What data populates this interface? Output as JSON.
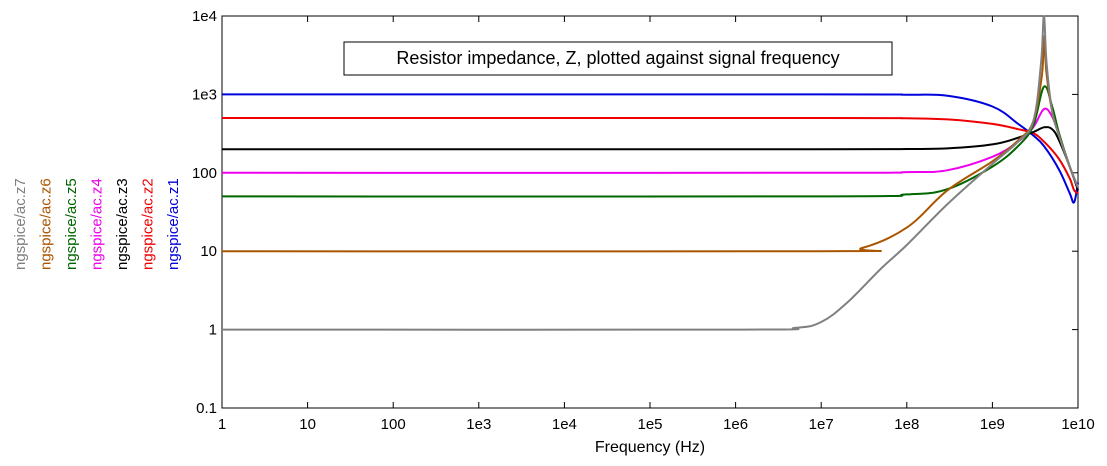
{
  "chart_data": {
    "type": "line",
    "title": "Resistor impedance, Z, plotted against signal frequency",
    "xlabel": "Frequency (Hz)",
    "ylabel": "",
    "x_scale": "log",
    "y_scale": "log",
    "xlim": [
      1,
      10000000000
    ],
    "ylim": [
      0.1,
      10000
    ],
    "x_ticks": [
      {
        "value": 1,
        "label": "1"
      },
      {
        "value": 10,
        "label": "10"
      },
      {
        "value": 100,
        "label": "100"
      },
      {
        "value": 1000,
        "label": "1e3"
      },
      {
        "value": 10000,
        "label": "1e4"
      },
      {
        "value": 100000,
        "label": "1e5"
      },
      {
        "value": 1000000,
        "label": "1e6"
      },
      {
        "value": 10000000,
        "label": "1e7"
      },
      {
        "value": 100000000,
        "label": "1e8"
      },
      {
        "value": 1000000000,
        "label": "1e9"
      },
      {
        "value": 10000000000,
        "label": "1e10"
      }
    ],
    "y_ticks": [
      {
        "value": 0.1,
        "label": "0.1"
      },
      {
        "value": 1,
        "label": "1"
      },
      {
        "value": 10,
        "label": "10"
      },
      {
        "value": 100,
        "label": "100"
      },
      {
        "value": 1000,
        "label": "1e3"
      },
      {
        "value": 10000,
        "label": "1e4"
      }
    ],
    "grid": false,
    "legend_position": "left, vertical",
    "series": [
      {
        "name": "ngspice/ac.z1",
        "color": "#0000dd",
        "x": [
          1,
          10000000,
          100000000,
          300000000,
          1000000000,
          2000000000,
          3000000000,
          4000000000,
          6000000000,
          8000000000,
          9000000000,
          10000000000
        ],
        "y": [
          1000,
          1000,
          990,
          960,
          700,
          420,
          300,
          220,
          110,
          55,
          42,
          75
        ]
      },
      {
        "name": "ngspice/ac.z2",
        "color": "#ee0000",
        "x": [
          1,
          10000000,
          100000000,
          300000000,
          1000000000,
          2000000000,
          3000000000,
          4000000000,
          6000000000,
          8000000000,
          9000000000,
          10000000000
        ],
        "y": [
          500,
          500,
          495,
          480,
          420,
          360,
          320,
          250,
          150,
          85,
          60,
          55
        ]
      },
      {
        "name": "ngspice/ac.z3",
        "color": "#000000",
        "x": [
          1,
          10000000,
          100000000,
          300000000,
          1000000000,
          2000000000,
          3000000000,
          4000000000,
          5000000000,
          6000000000,
          8000000000,
          10000000000
        ],
        "y": [
          200,
          200,
          201,
          205,
          230,
          280,
          330,
          380,
          360,
          260,
          120,
          60
        ]
      },
      {
        "name": "ngspice/ac.z4",
        "color": "#ee00ee",
        "x": [
          1,
          10000000,
          100000000,
          300000000,
          1000000000,
          2000000000,
          3000000000,
          4000000000,
          5000000000,
          6000000000,
          8000000000,
          10000000000
        ],
        "y": [
          100,
          100,
          102,
          108,
          160,
          250,
          380,
          650,
          520,
          300,
          120,
          65
        ]
      },
      {
        "name": "ngspice/ac.z5",
        "color": "#006600",
        "x": [
          1,
          10000000,
          100000000,
          300000000,
          1000000000,
          2000000000,
          3000000000,
          4000000000,
          5000000000,
          6000000000,
          8000000000,
          10000000000
        ],
        "y": [
          50,
          50,
          53,
          62,
          120,
          220,
          400,
          1250,
          700,
          320,
          120,
          65
        ]
      },
      {
        "name": "ngspice/ac.z6",
        "color": "#aa5500",
        "x": [
          1,
          10000000,
          30000000,
          100000000,
          300000000,
          1000000000,
          2000000000,
          3000000000,
          3800000000,
          4000000000,
          4300000000,
          5000000000,
          6000000000,
          8000000000,
          10000000000
        ],
        "y": [
          10,
          10,
          11,
          20,
          60,
          140,
          260,
          450,
          1800,
          5500,
          1800,
          600,
          300,
          120,
          65
        ]
      },
      {
        "name": "ngspice/ac.z7",
        "color": "#808080",
        "x": [
          1,
          1000000,
          5000000,
          10000000,
          20000000,
          50000000,
          100000000,
          300000000,
          1000000000,
          2000000000,
          3000000000,
          3700000000,
          4000000000,
          4300000000,
          5000000000,
          6000000000,
          8000000000,
          10000000000
        ],
        "y": [
          1,
          1,
          1.05,
          1.25,
          2.2,
          6,
          12,
          40,
          130,
          250,
          450,
          2500,
          10000,
          2500,
          600,
          300,
          120,
          65
        ]
      }
    ]
  }
}
